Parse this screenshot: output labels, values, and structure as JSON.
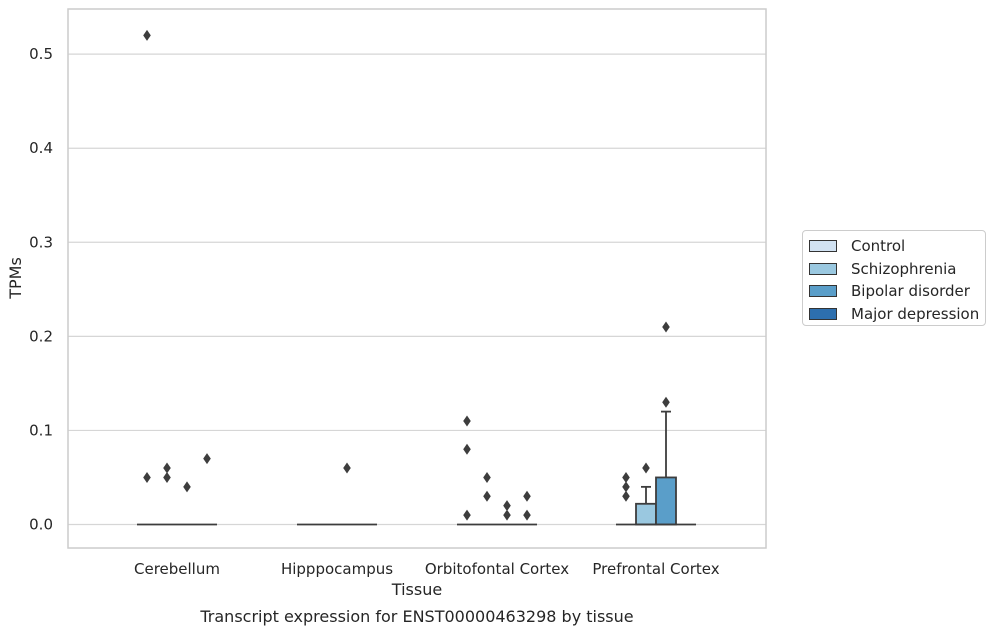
{
  "chart_data": {
    "type": "box",
    "title": "Transcript expression for ENST00000463298 by tissue",
    "xlabel": "Tissue",
    "ylabel": "TPMs",
    "ylim": [
      -0.025,
      0.548
    ],
    "yticks": [
      0.0,
      0.1,
      0.2,
      0.3,
      0.4,
      0.5
    ],
    "ytick_labels": [
      "0.0",
      "0.1",
      "0.2",
      "0.3",
      "0.4",
      "0.5"
    ],
    "grid": true,
    "legend_position": "right",
    "categories": [
      "Cerebellum",
      "Hipppocampus",
      "Orbitofontal Cortex",
      "Prefrontal Cortex"
    ],
    "series": [
      {
        "name": "Control",
        "color": "#d1e2f2",
        "boxes": [
          {
            "category": "Cerebellum",
            "q1": 0,
            "median": 0,
            "q3": 0,
            "whisker_low": 0,
            "whisker_high": 0,
            "outliers": [
              0.05,
              0.52
            ]
          },
          {
            "category": "Hipppocampus",
            "q1": 0,
            "median": 0,
            "q3": 0,
            "whisker_low": 0,
            "whisker_high": 0,
            "outliers": []
          },
          {
            "category": "Orbitofontal Cortex",
            "q1": 0,
            "median": 0,
            "q3": 0,
            "whisker_low": 0,
            "whisker_high": 0,
            "outliers": [
              0.01,
              0.08,
              0.11
            ]
          },
          {
            "category": "Prefrontal Cortex",
            "q1": 0,
            "median": 0,
            "q3": 0,
            "whisker_low": 0,
            "whisker_high": 0,
            "outliers": [
              0.03,
              0.04,
              0.05
            ]
          }
        ]
      },
      {
        "name": "Schizophrenia",
        "color": "#9ac8e0",
        "boxes": [
          {
            "category": "Cerebellum",
            "q1": 0,
            "median": 0,
            "q3": 0,
            "whisker_low": 0,
            "whisker_high": 0,
            "outliers": [
              0.05,
              0.06
            ]
          },
          {
            "category": "Hipppocampus",
            "q1": 0,
            "median": 0,
            "q3": 0,
            "whisker_low": 0,
            "whisker_high": 0,
            "outliers": []
          },
          {
            "category": "Orbitofontal Cortex",
            "q1": 0,
            "median": 0,
            "q3": 0,
            "whisker_low": 0,
            "whisker_high": 0,
            "outliers": [
              0.03,
              0.05
            ]
          },
          {
            "category": "Prefrontal Cortex",
            "q1": 0,
            "median": 0,
            "q3": 0.022,
            "whisker_low": 0,
            "whisker_high": 0.04,
            "outliers": [
              0.06
            ]
          }
        ]
      },
      {
        "name": "Bipolar disorder",
        "color": "#5a9ec9",
        "boxes": [
          {
            "category": "Cerebellum",
            "q1": 0,
            "median": 0,
            "q3": 0,
            "whisker_low": 0,
            "whisker_high": 0,
            "outliers": [
              0.04
            ]
          },
          {
            "category": "Hipppocampus",
            "q1": 0,
            "median": 0,
            "q3": 0,
            "whisker_low": 0,
            "whisker_high": 0,
            "outliers": [
              0.06
            ]
          },
          {
            "category": "Orbitofontal Cortex",
            "q1": 0,
            "median": 0,
            "q3": 0,
            "whisker_low": 0,
            "whisker_high": 0,
            "outliers": [
              0.01,
              0.02
            ]
          },
          {
            "category": "Prefrontal Cortex",
            "q1": 0,
            "median": 0,
            "q3": 0.05,
            "whisker_low": 0,
            "whisker_high": 0.12,
            "outliers": [
              0.13,
              0.21
            ]
          }
        ]
      },
      {
        "name": "Major depression",
        "color": "#2d6fae",
        "boxes": [
          {
            "category": "Cerebellum",
            "q1": 0,
            "median": 0,
            "q3": 0,
            "whisker_low": 0,
            "whisker_high": 0,
            "outliers": [
              0.07
            ]
          },
          {
            "category": "Hipppocampus",
            "q1": 0,
            "median": 0,
            "q3": 0,
            "whisker_low": 0,
            "whisker_high": 0,
            "outliers": []
          },
          {
            "category": "Orbitofontal Cortex",
            "q1": 0,
            "median": 0,
            "q3": 0,
            "whisker_low": 0,
            "whisker_high": 0,
            "outliers": [
              0.01,
              0.03
            ]
          },
          {
            "category": "Prefrontal Cortex",
            "q1": 0,
            "median": 0,
            "q3": 0,
            "whisker_low": 0,
            "whisker_high": 0,
            "outliers": []
          }
        ]
      }
    ]
  },
  "colors": {
    "grid": "#d6d6d6",
    "spine": "#cccccc",
    "line": "#3d3d3d",
    "text": "#262626"
  }
}
